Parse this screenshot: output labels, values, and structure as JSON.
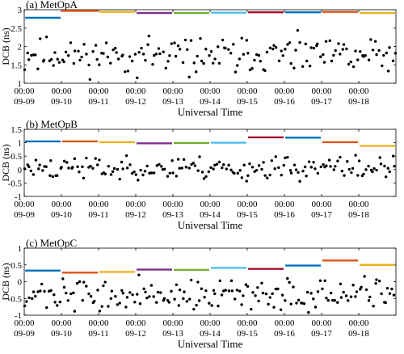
{
  "chart_data": [
    {
      "type": "scatter",
      "title": "(a) MetOpA",
      "xlabel": "Universal Time",
      "ylabel": "DCB (ns)",
      "ylim": [
        1,
        3
      ],
      "yticks": [
        1,
        1.5,
        2,
        2.5,
        3
      ],
      "ytick_labels": [
        "1",
        "1.5",
        "2",
        "2.5",
        "3"
      ],
      "xlim": [
        0,
        10
      ],
      "grid": false,
      "x_tick_labels": [
        {
          "time": "00:00",
          "date": "09-09"
        },
        {
          "time": "00:00",
          "date": "09-10"
        },
        {
          "time": "00:00",
          "date": "09-11"
        },
        {
          "time": "00:00",
          "date": "09-12"
        },
        {
          "time": "00:00",
          "date": "09-13"
        },
        {
          "time": "00:00",
          "date": "09-14"
        },
        {
          "time": "00:00",
          "date": "09-15"
        },
        {
          "time": "00:00",
          "date": "09-16"
        },
        {
          "time": "00:00",
          "date": "09-17"
        },
        {
          "time": "00:00",
          "date": "09-18"
        }
      ],
      "daily_bias": [
        2.78,
        2.97,
        2.94,
        2.91,
        2.91,
        2.92,
        2.93,
        2.93,
        2.94,
        2.91
      ],
      "scatter_seed": 11,
      "scatter_center": 1.75,
      "scatter_spread": 0.3
    },
    {
      "type": "scatter",
      "title": "(b) MetOpB",
      "xlabel": "Universal Time",
      "ylabel": "DCB (ns)",
      "ylim": [
        -1,
        1.5
      ],
      "yticks": [
        -1,
        -0.5,
        0,
        0.5,
        1,
        1.5
      ],
      "ytick_labels": [
        "-1",
        "-0.5",
        "0",
        "0.5",
        "1",
        "1.5"
      ],
      "xlim": [
        0,
        10
      ],
      "grid": false,
      "x_tick_labels": [
        {
          "time": "00:00",
          "date": "09-09"
        },
        {
          "time": "00:00",
          "date": "09-10"
        },
        {
          "time": "00:00",
          "date": "09-11"
        },
        {
          "time": "00:00",
          "date": "09-12"
        },
        {
          "time": "00:00",
          "date": "09-13"
        },
        {
          "time": "00:00",
          "date": "09-14"
        },
        {
          "time": "00:00",
          "date": "09-15"
        },
        {
          "time": "00:00",
          "date": "09-16"
        },
        {
          "time": "00:00",
          "date": "09-17"
        },
        {
          "time": "00:00",
          "date": "09-18"
        }
      ],
      "daily_bias": [
        1.05,
        1.05,
        1.02,
        0.98,
        0.99,
        1.0,
        1.2,
        1.19,
        1.02,
        0.88
      ],
      "scatter_seed": 23,
      "scatter_center": 0.05,
      "scatter_spread": 0.27
    },
    {
      "type": "scatter",
      "title": "(c) MetOpC",
      "xlabel": "Universal Time",
      "ylabel": "DCB (ns)",
      "ylim": [
        -1,
        1
      ],
      "yticks": [
        -1,
        -0.5,
        0,
        0.5,
        1
      ],
      "ytick_labels": [
        "-1",
        "-0.5",
        "0",
        "0.5",
        "1"
      ],
      "xlim": [
        0,
        10
      ],
      "grid": false,
      "x_tick_labels": [
        {
          "time": "00:00",
          "date": "09-09"
        },
        {
          "time": "00:00",
          "date": "09-10"
        },
        {
          "time": "00:00",
          "date": "09-11"
        },
        {
          "time": "00:00",
          "date": "09-12"
        },
        {
          "time": "00:00",
          "date": "09-13"
        },
        {
          "time": "00:00",
          "date": "09-14"
        },
        {
          "time": "00:00",
          "date": "09-15"
        },
        {
          "time": "00:00",
          "date": "09-16"
        },
        {
          "time": "00:00",
          "date": "09-17"
        },
        {
          "time": "00:00",
          "date": "09-18"
        }
      ],
      "daily_bias": [
        0.33,
        0.27,
        0.29,
        0.36,
        0.35,
        0.41,
        0.38,
        0.48,
        0.63,
        0.5
      ],
      "scatter_seed": 37,
      "scatter_center": -0.42,
      "scatter_spread": 0.28
    }
  ],
  "colors": {
    "day_lines": [
      "#0072bd",
      "#d95319",
      "#edb120",
      "#7e2f8e",
      "#77ac30",
      "#4dbeee",
      "#a2142f",
      "#0072bd",
      "#d95319",
      "#edb120"
    ],
    "points": "#000000",
    "axes": "#000000"
  }
}
